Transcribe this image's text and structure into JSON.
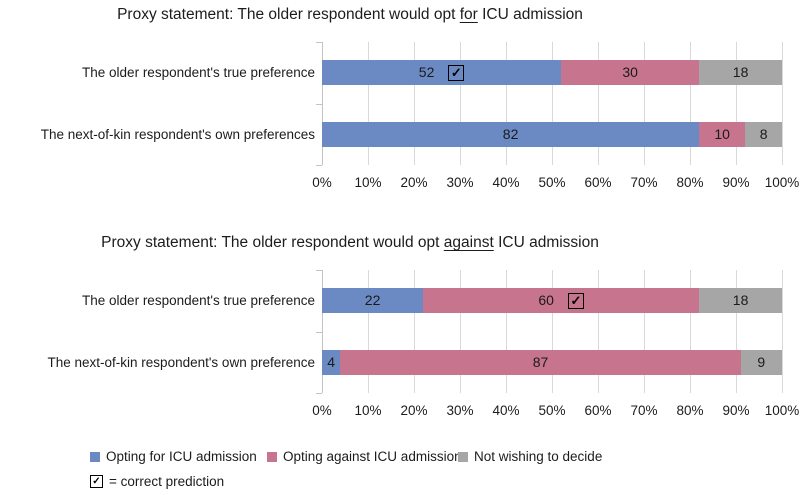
{
  "icons": {
    "check": "✓"
  },
  "colors": {
    "series": [
      "#6B8AC4",
      "#C7758F",
      "#A6A6A6"
    ],
    "gridline": "#D9D9D9",
    "axis": "#C3C3C3",
    "text": "#1C1C1C"
  },
  "chart_data": [
    {
      "type": "bar",
      "orientation": "horizontal",
      "stacked": true,
      "title": "Proxy statement: The older respondent would opt for ICU admission",
      "title_prefix": "Proxy statement: The older respondent would opt ",
      "title_underline": "for",
      "title_suffix": " ICU admission",
      "categories": [
        "The older respondent's true preference",
        "The next-of-kin respondent's own preferences"
      ],
      "series": [
        {
          "name": "Opting for ICU admission",
          "values": [
            52,
            82
          ]
        },
        {
          "name": "Opting against ICU admission",
          "values": [
            30,
            10
          ]
        },
        {
          "name": "Not wishing to decide",
          "values": [
            18,
            8
          ]
        }
      ],
      "correct_prediction_marker": {
        "category_index": 0,
        "series_index": 0
      },
      "x_ticks": [
        "0%",
        "10%",
        "20%",
        "30%",
        "40%",
        "50%",
        "60%",
        "70%",
        "80%",
        "90%",
        "100%"
      ],
      "xlim": [
        0,
        100
      ],
      "grid": true,
      "unit": "%"
    },
    {
      "type": "bar",
      "orientation": "horizontal",
      "stacked": true,
      "title": "Proxy statement: The older respondent would opt against ICU admission",
      "title_prefix": "Proxy statement: The older respondent would opt ",
      "title_underline": "against",
      "title_suffix": " ICU admission",
      "categories": [
        "The older respondent's true preference",
        "The next-of-kin respondent's own preference"
      ],
      "series": [
        {
          "name": "Opting for ICU admission",
          "values": [
            22,
            4
          ]
        },
        {
          "name": "Opting against ICU admission",
          "values": [
            60,
            87
          ]
        },
        {
          "name": "Not wishing to decide",
          "values": [
            18,
            9
          ]
        }
      ],
      "correct_prediction_marker": {
        "category_index": 0,
        "series_index": 1
      },
      "x_ticks": [
        "0%",
        "10%",
        "20%",
        "30%",
        "40%",
        "50%",
        "60%",
        "70%",
        "80%",
        "90%",
        "100%"
      ],
      "xlim": [
        0,
        100
      ],
      "grid": true,
      "unit": "%"
    }
  ],
  "legend": {
    "items": [
      {
        "label": "Opting for ICU admission",
        "color": "#6B8AC4"
      },
      {
        "label": "Opting against ICU admission",
        "color": "#C7758F"
      },
      {
        "label": "Not wishing to decide",
        "color": "#A6A6A6"
      }
    ],
    "note_text": "= correct prediction"
  }
}
